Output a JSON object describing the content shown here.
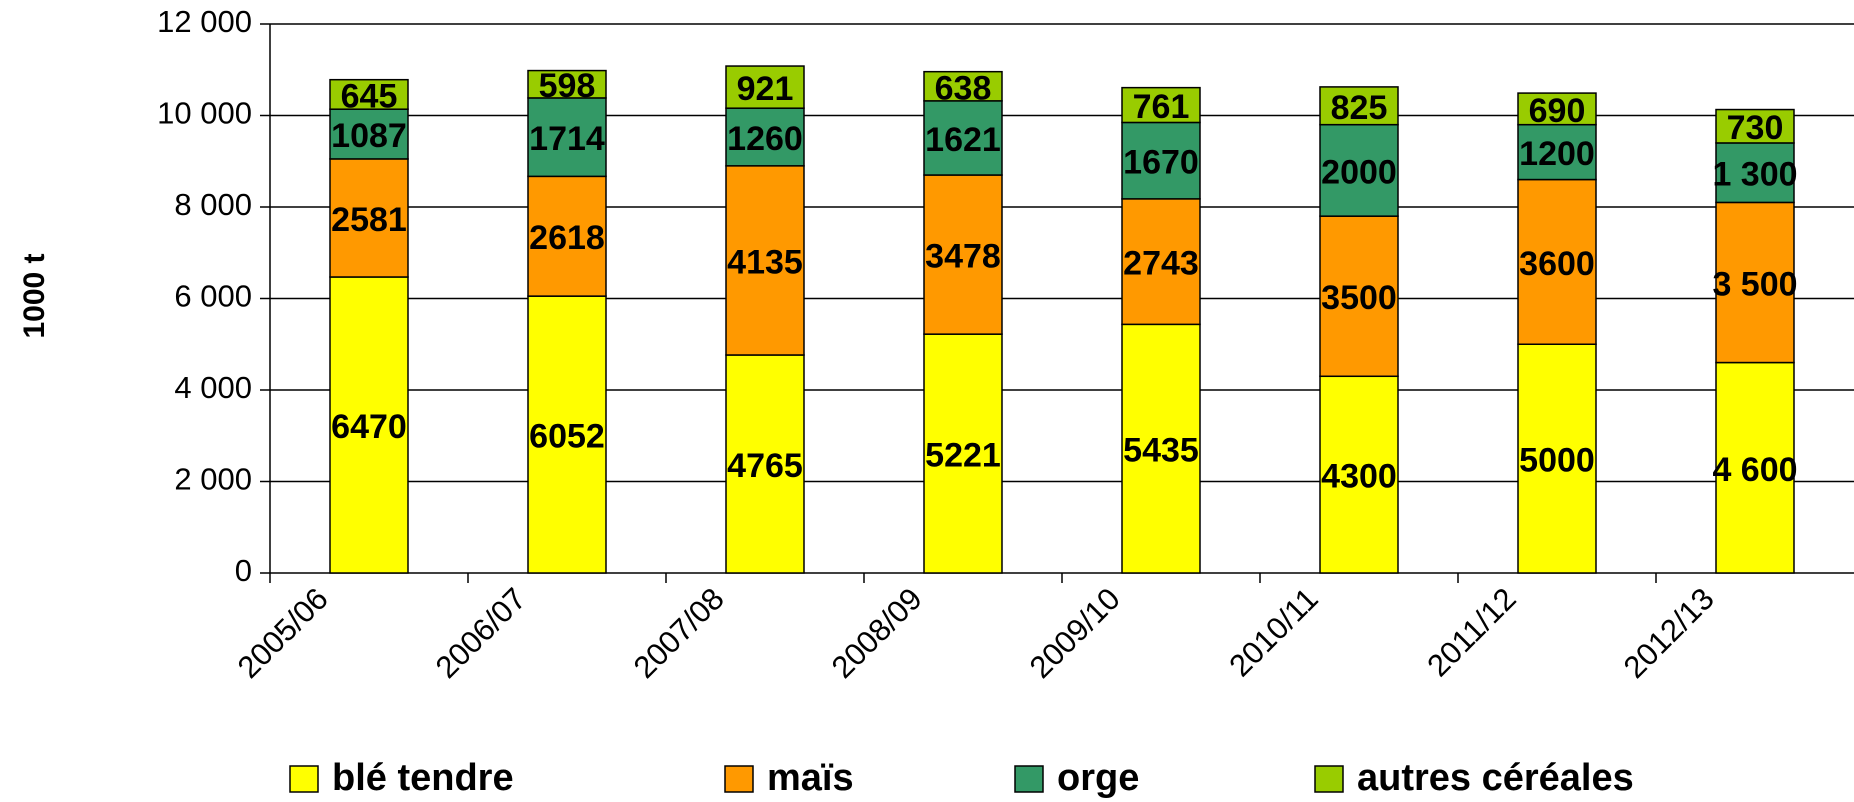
{
  "chart_data": {
    "type": "stacked-bar",
    "y_label": "1000 t",
    "categories": [
      "2005/06",
      "2006/07",
      "2007/08",
      "2008/09",
      "2009/10",
      "2010/11",
      "2011/12",
      "2012/13"
    ],
    "series": [
      {
        "name": "blé tendre",
        "color": "#ffff00",
        "values": [
          6470,
          6052,
          4765,
          5221,
          5435,
          4300,
          5000,
          4600
        ],
        "value_labels": [
          "6470",
          "6052",
          "4765",
          "5221",
          "5435",
          "4300",
          "5000",
          "4 600"
        ]
      },
      {
        "name": "maïs",
        "color": "#ff9900",
        "values": [
          2581,
          2618,
          4135,
          3478,
          2743,
          3500,
          3600,
          3500
        ],
        "value_labels": [
          "2581",
          "2618",
          "4135",
          "3478",
          "2743",
          "3500",
          "3600",
          "3 500"
        ]
      },
      {
        "name": "orge",
        "color": "#339966",
        "values": [
          1087,
          1714,
          1260,
          1621,
          1670,
          2000,
          1200,
          1300
        ],
        "value_labels": [
          "1087",
          "1714",
          "1260",
          "1621",
          "1670",
          "2000",
          "1200",
          "1 300"
        ]
      },
      {
        "name": "autres céréales",
        "color": "#99cc00",
        "values": [
          645,
          598,
          921,
          638,
          761,
          825,
          690,
          730
        ],
        "value_labels": [
          "645",
          "598",
          "921",
          "638",
          "761",
          "825",
          "690",
          "730"
        ]
      }
    ],
    "ylim": [
      0,
      12000
    ],
    "yticks": [
      0,
      {
        "value": 2000,
        "label": "2 000"
      },
      {
        "value": 4000,
        "label": "4 000"
      },
      {
        "value": 6000,
        "label": "6 000"
      },
      {
        "value": 8000,
        "label": "8 000"
      },
      {
        "value": 10000,
        "label": "10 000"
      },
      {
        "value": 12000,
        "label": "12 000"
      }
    ],
    "grid": true,
    "legend": "bottom"
  }
}
